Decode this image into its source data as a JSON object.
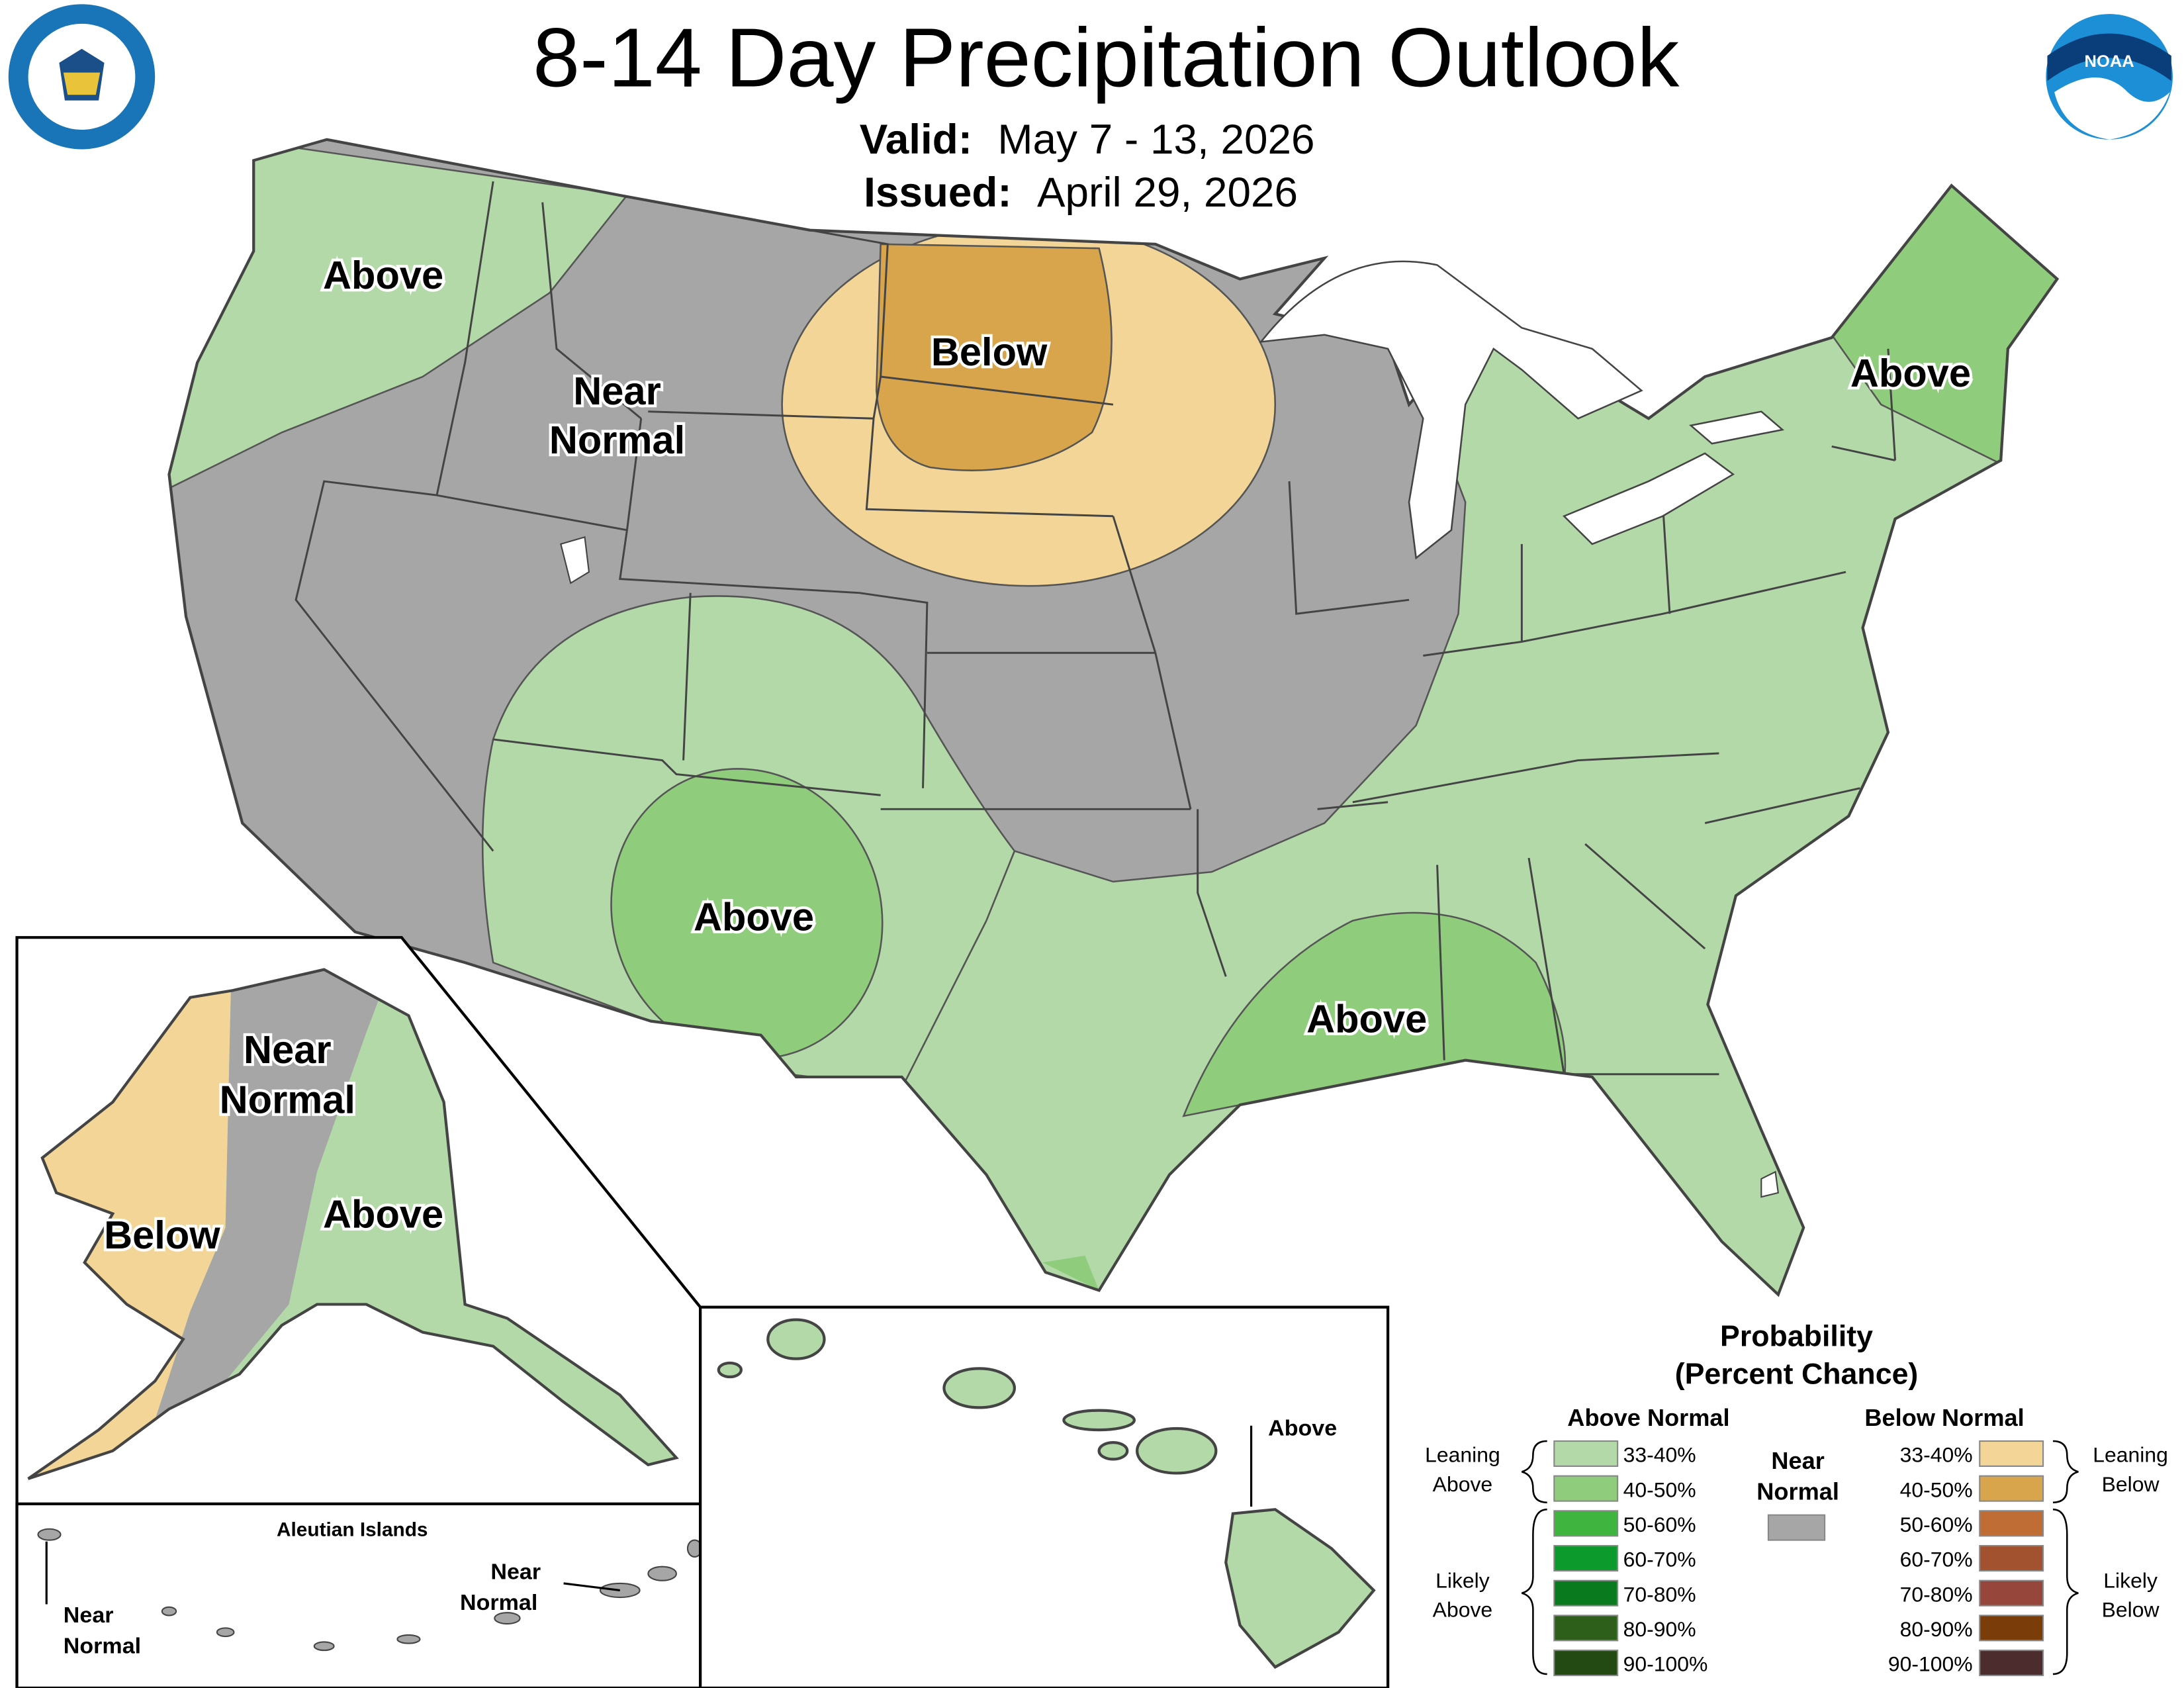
{
  "header": {
    "title": "8-14 Day Precipitation Outlook",
    "valid_label": "Valid:",
    "valid": "May 7 - 13, 2026",
    "issued_label": "Issued:",
    "issued": "April 29, 2026",
    "noaa_logo": "NOAA"
  },
  "map_labels": {
    "conus_northwest": "Above",
    "conus_near_normal": [
      "Near",
      "Normal"
    ],
    "conus_below": "Below",
    "conus_northeast": "Above",
    "conus_southwest": "Above",
    "conus_south": "Above",
    "alaska_near_normal": [
      "Near",
      "Normal"
    ],
    "alaska_below": "Below",
    "alaska_above": "Above",
    "hawaii": "Above",
    "aleutian_title": "Aleutian Islands",
    "aleutian_west": [
      "Near",
      "Normal"
    ],
    "aleutian_east": [
      "Near",
      "Normal"
    ]
  },
  "legend": {
    "title": "Probability",
    "subtitle": "(Percent Chance)",
    "above_heading": "Above Normal",
    "below_heading": "Below Normal",
    "near_normal": [
      "Near",
      "Normal"
    ],
    "near_normal_color": "#a6a6a6",
    "leaning_above": [
      "Leaning",
      "Above"
    ],
    "likely_above": [
      "Likely",
      "Above"
    ],
    "leaning_below": [
      "Leaning",
      "Below"
    ],
    "likely_below": [
      "Likely",
      "Below"
    ],
    "above_rows": [
      {
        "label": "33-40%",
        "color": "#b3d9a8"
      },
      {
        "label": "40-50%",
        "color": "#8fcd7c"
      },
      {
        "label": "50-60%",
        "color": "#3fb540"
      },
      {
        "label": "60-70%",
        "color": "#0c9a2c"
      },
      {
        "label": "70-80%",
        "color": "#0a7a1e"
      },
      {
        "label": "80-90%",
        "color": "#2d5e1a"
      },
      {
        "label": "90-100%",
        "color": "#234a12"
      }
    ],
    "below_rows": [
      {
        "label": "33-40%",
        "color": "#f2d597"
      },
      {
        "label": "40-50%",
        "color": "#d8a54c"
      },
      {
        "label": "50-60%",
        "color": "#c06c35"
      },
      {
        "label": "60-70%",
        "color": "#a2522e"
      },
      {
        "label": "70-80%",
        "color": "#97463b"
      },
      {
        "label": "80-90%",
        "color": "#7a3d09"
      },
      {
        "label": "90-100%",
        "color": "#4c2c2c"
      }
    ]
  }
}
